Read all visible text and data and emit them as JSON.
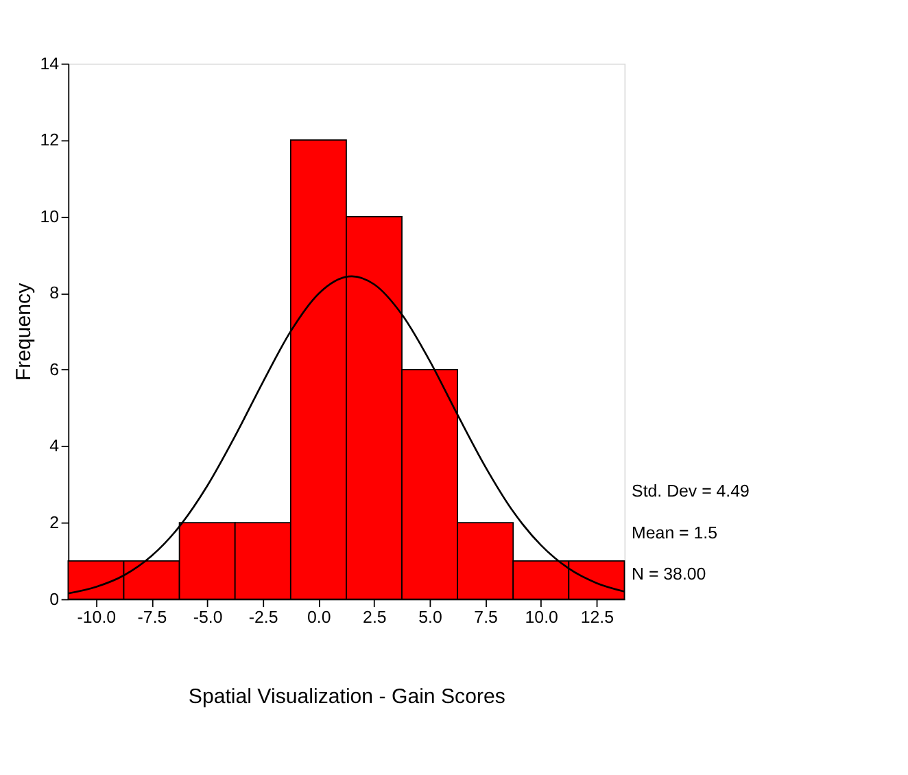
{
  "chart_data": {
    "type": "histogram",
    "xlabel": "Spatial Visualization - Gain Scores",
    "ylabel": "Frequency",
    "bins": [
      -11.25,
      -8.75,
      -6.25,
      -3.75,
      -1.25,
      1.25,
      3.75,
      6.25,
      8.75,
      11.25,
      13.75
    ],
    "values": [
      1,
      1,
      2,
      2,
      12,
      10,
      6,
      2,
      1,
      1
    ],
    "color": "#ff0000",
    "series": [
      {
        "type": "line",
        "color": "#000000",
        "x": [
          -11.25,
          -10,
          -8.75,
          -7.5,
          -6.25,
          -5,
          -3.75,
          -2.5,
          -1.25,
          0,
          1.5,
          2.5,
          3.75,
          5,
          6.25,
          7.5,
          8.75,
          10,
          11.25,
          12.5,
          13.75
        ],
        "values": [
          0.15,
          0.32,
          0.62,
          1.13,
          1.9,
          2.96,
          4.26,
          5.67,
          7.0,
          7.98,
          8.44,
          8.23,
          7.44,
          6.23,
          4.82,
          3.46,
          2.29,
          1.41,
          0.8,
          0.42,
          0.2
        ]
      }
    ],
    "xlim": [
      -11.25,
      13.75
    ],
    "xticks": [
      {
        "value": -10,
        "label": "-10.0"
      },
      -7.5,
      {
        "value": -5,
        "label": "-5.0"
      },
      -2.5,
      {
        "value": 0,
        "label": "0.0"
      },
      2.5,
      {
        "value": 5,
        "label": "5.0"
      },
      7.5,
      {
        "value": 10,
        "label": "10.0"
      },
      12.5
    ],
    "ylim": [
      0,
      14
    ],
    "yticks": [
      0,
      2,
      4,
      6,
      8,
      10,
      12,
      14
    ],
    "grid": false,
    "annotations": [
      "Std. Dev = 4.49",
      "Mean = 1.5",
      "N = 38.00"
    ]
  }
}
